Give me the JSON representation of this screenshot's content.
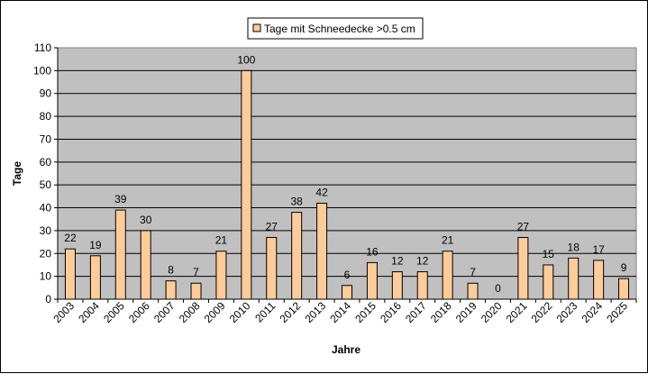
{
  "chart_data": {
    "type": "bar",
    "categories": [
      "2003",
      "2004",
      "2005",
      "2006",
      "2007",
      "2008",
      "2009",
      "2010",
      "2011",
      "2012",
      "2013",
      "2014",
      "2015",
      "2016",
      "2017",
      "2018",
      "2019",
      "2020",
      "2021",
      "2022",
      "2023",
      "2024",
      "2025"
    ],
    "series": [
      {
        "name": "Tage mit Schneedecke >0.5 cm",
        "values": [
          22,
          19,
          39,
          30,
          8,
          7,
          21,
          100,
          27,
          38,
          42,
          6,
          16,
          12,
          12,
          21,
          7,
          0,
          27,
          15,
          18,
          17,
          9
        ]
      }
    ],
    "ylabel": "Tage",
    "xlabel": "Jahre",
    "ylim": [
      0,
      110
    ],
    "yticks": [
      0,
      10,
      20,
      30,
      40,
      50,
      60,
      70,
      80,
      90,
      100,
      110
    ],
    "grid": true,
    "legend_position": "top-center",
    "colors": {
      "bar_fill": "#ffcc99",
      "bar_stroke": "#000000",
      "plot_background": "#c0c0c0",
      "gridline": "#000000"
    }
  }
}
